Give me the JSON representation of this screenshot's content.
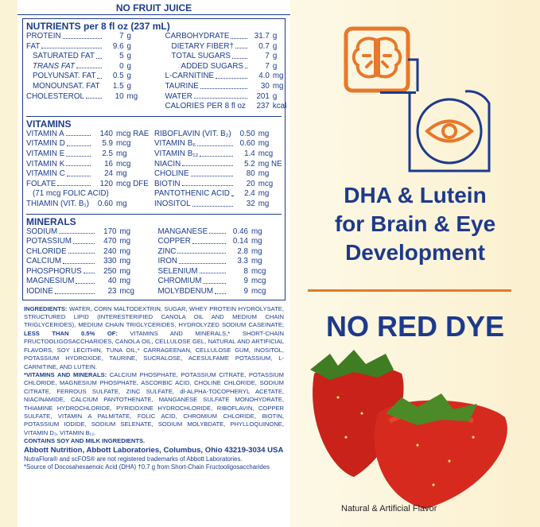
{
  "label": {
    "heading": "NO FRUIT JUICE",
    "nutrients": {
      "title": "NUTRIENTS per 8 fl oz (237 mL)",
      "left": [
        [
          "PROTEIN",
          "7",
          "g"
        ],
        [
          "FAT",
          "9.6",
          "g"
        ],
        [
          "SATURATED FAT",
          "5",
          "g"
        ],
        [
          "TRANS FAT",
          "0",
          "g"
        ],
        [
          "POLYUNSAT. FAT",
          "0.5",
          "g"
        ],
        [
          "MONOUNSAT. FAT",
          "1.5",
          "g"
        ],
        [
          "CHOLESTEROL",
          "10",
          "mg"
        ]
      ],
      "right": [
        [
          "CARBOHYDRATE",
          "31.7",
          "g"
        ],
        [
          "DIETARY FIBER†",
          "0.7",
          "g"
        ],
        [
          "TOTAL SUGARS",
          "7",
          "g"
        ],
        [
          "ADDED SUGARS",
          "7",
          "g"
        ],
        [
          "L-CARNITINE",
          "4.0",
          "mg"
        ],
        [
          "TAURINE",
          "30",
          "mg"
        ],
        [
          "WATER",
          "201",
          "g"
        ],
        [
          "CALORIES PER 8 fl oz",
          "237",
          "kcal"
        ]
      ]
    },
    "vitamins": {
      "title": "VITAMINS",
      "left": [
        [
          "VITAMIN A",
          "140",
          "mcg RAE"
        ],
        [
          "VITAMIN D",
          "5.9",
          "mcg"
        ],
        [
          "VITAMIN E",
          "2.5",
          "mg"
        ],
        [
          "VITAMIN K",
          "16",
          "mcg"
        ],
        [
          "VITAMIN C",
          "24",
          "mg"
        ],
        [
          "FOLATE",
          "120",
          "mcg DFE"
        ],
        [
          "(71 mcg FOLIC ACID)"
        ],
        [
          "THIAMIN (VIT. B₁)",
          "0.60",
          "mg"
        ]
      ],
      "right": [
        [
          "RIBOFLAVIN (VIT. B₂)",
          "0.50",
          "mg"
        ],
        [
          "VITAMIN B₆",
          "0.60",
          "mg"
        ],
        [
          "VITAMIN B₁₂",
          "1.4",
          "mcg"
        ],
        [
          "NIACIN",
          "5.2",
          "mg NE"
        ],
        [
          "CHOLINE",
          "80",
          "mg"
        ],
        [
          "BIOTIN",
          "20",
          "mcg"
        ],
        [
          "PANTOTHENIC ACID",
          "2.4",
          "mg"
        ],
        [
          "INOSITOL",
          "32",
          "mg"
        ]
      ]
    },
    "minerals": {
      "title": "MINERALS",
      "left": [
        [
          "SODIUM",
          "170",
          "mg"
        ],
        [
          "POTASSIUM",
          "470",
          "mg"
        ],
        [
          "CHLORIDE",
          "240",
          "mg"
        ],
        [
          "CALCIUM",
          "330",
          "mg"
        ],
        [
          "PHOSPHORUS",
          "250",
          "mg"
        ],
        [
          "MAGNESIUM",
          "40",
          "mg"
        ],
        [
          "IODINE",
          "23",
          "mcg"
        ]
      ],
      "right": [
        [
          "MANGANESE",
          "0.46",
          "mg"
        ],
        [
          "COPPER",
          "0.14",
          "mg"
        ],
        [
          "ZINC",
          "2.8",
          "mg"
        ],
        [
          "IRON",
          "3.3",
          "mg"
        ],
        [
          "SELENIUM",
          "8",
          "mcg"
        ],
        [
          "CHROMIUM",
          "9",
          "mcg"
        ],
        [
          "MOLYBDENUM",
          "9",
          "mcg"
        ]
      ]
    },
    "ingredients_label": "INGREDIENTS:",
    "ingredients_text1": "WATER, CORN MALTODEXTRIN, SUGAR, WHEY PROTEIN HYDROLYSATE, STRUCTURED LIPID (INTERESTERIFIED CANOLA OIL AND MEDIUM CHAIN TRIGLYCERIDES), MEDIUM CHAIN TRIGLYCERIDES, HYDROLYZED SODIUM CASEINATE;",
    "less_than": "LESS THAN 0.5% OF:",
    "ingredients_text2": "VITAMINS AND MINERALS,* SHORT-CHAIN FRUCTOOLIGOSACCHARIDES, CANOLA OIL, CELLULOSE GEL, NATURAL AND ARTIFICIAL FLAVORS, SOY LECITHIN, TUNA OIL,* CARRAGEENAN, CELLULOSE GUM, INOSITOL, POTASSIUM HYDROXIDE, TAURINE, SUCRALOSE, ACESULFAME POTASSIUM, L-CARNITINE, AND LUTEIN.",
    "vitmin_label": "*VITAMINS AND MINERALS:",
    "vitmin_text": "CALCIUM PHOSPHATE, POTASSIUM CITRATE, POTASSIUM CHLORIDE, MAGNESIUM PHOSPHATE, ASCORBIC ACID, CHOLINE CHLORIDE, SODIUM CITRATE, FERROUS SULFATE, ZINC SULFATE, dl-ALPHA-TOCOPHERYL ACETATE, NIACINAMIDE, CALCIUM PANTOTHENATE, MANGANESE SULFATE MONOHYDRATE, THIAMINE HYDROCHLORIDE, PYRIDOXINE HYDROCHLORIDE, RIBOFLAVIN, COPPER SULFATE, VITAMIN A PALMITATE, FOLIC ACID, CHROMIUM CHLORIDE, BIOTIN, POTASSIUM IODIDE, SODIUM SELENATE, SODIUM MOLYBDATE, PHYLLOQUINONE, VITAMIN D₃, VITAMIN B₁₂.",
    "contains": "CONTAINS SOY AND MILK INGREDIENTS.",
    "company": "Abbott Nutrition, Abbott Laboratories, Columbus, Ohio 43219-3034 USA",
    "trademark": "NutraFlora® and scFOS® are not registered trademarks of Abbott Laboratories.",
    "footnote": "*Source of Docosahexaenoic Acid (DHA) †0.7 g from Short-Chain Fructooligosaccharides"
  },
  "promo": {
    "headline": [
      "DHA & Lutein",
      "for Brain & Eye",
      "Development"
    ],
    "claim": "NO RED DYE",
    "flavor": "Natural & Artificial Flavor"
  }
}
